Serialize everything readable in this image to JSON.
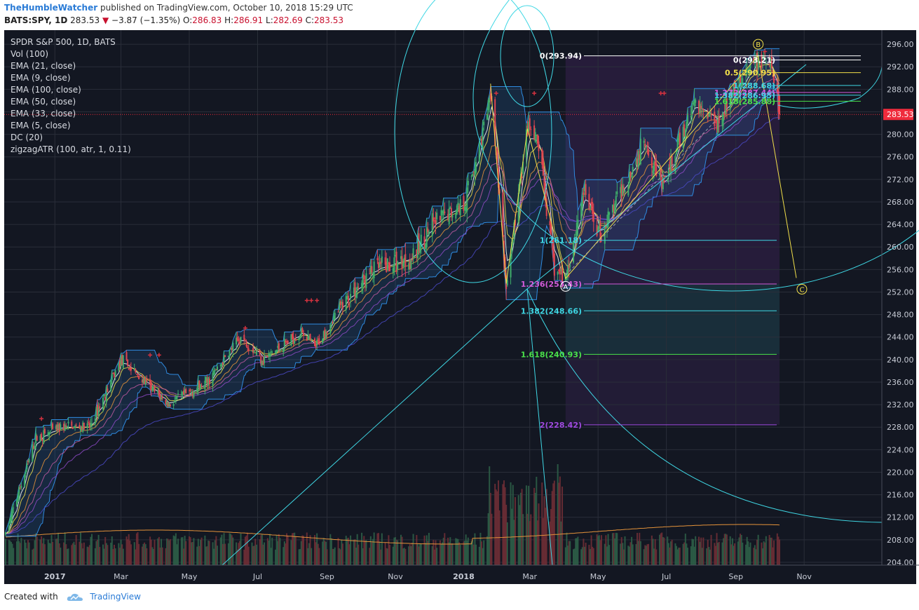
{
  "header": {
    "author": "TheHumbleWatcher",
    "published_text": "published on TradingView.com, October 10, 2018 15:29 UTC",
    "symbol": "BATS:SPY, 1D",
    "last": "283.53",
    "change_arrow": "▼",
    "change": "−3.87 (−1.35%)",
    "o_label": "O:",
    "o": "286.83",
    "h_label": "H:",
    "h": "286.91",
    "l_label": "L:",
    "l": "282.69",
    "c_label": "C:",
    "c": "283.53"
  },
  "legend": [
    "SPDR S&P 500, 1D, BATS",
    "Vol (100)",
    "EMA (21, close)",
    "EMA (9, close)",
    "EMA (100, close)",
    "EMA (50, close)",
    "EMA (33, close)",
    "EMA (5, close)",
    "DC (20)",
    "zigzagATR (100, atr, 1, 0.11)"
  ],
  "footer": {
    "created_with": "Created with",
    "brand": "TradingView"
  },
  "colors": {
    "background": "#131722",
    "grid": "#2a2e39",
    "up": "#3fae6a",
    "down": "#e0454f",
    "cyan": "#3fd7e4",
    "yellow": "#f2e04a",
    "donchian": "#2f8be0",
    "price_tag": "#ef2b3c"
  },
  "chart_data": {
    "type": "candlestick",
    "title": "SPDR S&P 500, 1D, BATS",
    "price_axis": {
      "ylim": [
        203.5,
        298.5
      ],
      "ticks": [
        "296.00",
        "292.00",
        "288.00",
        "284.00",
        "280.00",
        "276.00",
        "272.00",
        "268.00",
        "264.00",
        "260.00",
        "256.00",
        "252.00",
        "248.00",
        "244.00",
        "240.00",
        "236.00",
        "232.00",
        "228.00",
        "224.00",
        "220.00",
        "216.00",
        "212.00",
        "208.00",
        "204.00"
      ]
    },
    "time_axis": {
      "labels": [
        "2017",
        "Mar",
        "May",
        "Jul",
        "Sep",
        "Nov",
        "2018",
        "Mar",
        "May",
        "Jul",
        "Sep",
        "Nov"
      ]
    },
    "last_price_tag": "283.53",
    "price_path": [
      [
        "2016-11-18",
        209
      ],
      [
        "2016-12-15",
        226
      ],
      [
        "2017-01-06",
        228
      ],
      [
        "2017-02-01",
        228
      ],
      [
        "2017-03-01",
        240
      ],
      [
        "2017-04-12",
        232
      ],
      [
        "2017-05-17",
        236
      ],
      [
        "2017-06-16",
        244
      ],
      [
        "2017-07-06",
        240
      ],
      [
        "2017-08-10",
        245
      ],
      [
        "2017-08-21",
        242
      ],
      [
        "2017-09-15",
        250
      ],
      [
        "2017-10-13",
        256
      ],
      [
        "2017-11-15",
        258
      ],
      [
        "2017-12-04",
        264
      ],
      [
        "2018-01-02",
        268
      ],
      [
        "2018-01-26",
        286.6
      ],
      [
        "2018-02-08",
        253.0
      ],
      [
        "2018-02-27",
        281.0
      ],
      [
        "2018-03-09",
        278.0
      ],
      [
        "2018-03-23",
        256.0
      ],
      [
        "2018-04-02",
        254.4
      ],
      [
        "2018-04-18",
        270.0
      ],
      [
        "2018-05-03",
        262.0
      ],
      [
        "2018-06-12",
        279.0
      ],
      [
        "2018-06-28",
        270.5
      ],
      [
        "2018-07-25",
        285.5
      ],
      [
        "2018-08-15",
        282.5
      ],
      [
        "2018-09-20",
        293.2
      ],
      [
        "2018-10-03",
        292.0
      ],
      [
        "2018-10-10",
        283.53
      ]
    ],
    "fib_levels": [
      {
        "label": "0(293.94)",
        "value": 293.94
      },
      {
        "label": "0(293.21)",
        "value": 293.21
      },
      {
        "label": "0.5(290.95)",
        "value": 290.95
      },
      {
        "label": "1(288.68)",
        "value": 288.68
      },
      {
        "label": "1.272(287.44)",
        "value": 287.44
      },
      {
        "label": "1.382(286.95)",
        "value": 286.95
      },
      {
        "label": "1.618(285.88)",
        "value": 285.88
      },
      {
        "label": "1(261.18)",
        "value": 261.18
      },
      {
        "label": "1.236(253.43)",
        "value": 253.43
      },
      {
        "label": "1.382(248.66)",
        "value": 248.66
      },
      {
        "label": "1.618(240.93)",
        "value": 240.93
      },
      {
        "label": "2(228.42)",
        "value": 228.42
      }
    ],
    "wave_labels": [
      "A",
      "B",
      "C"
    ],
    "wave_points": [
      {
        "label": "A",
        "date": "2018-04-02",
        "price": 253.0
      },
      {
        "label": "B",
        "date": "2018-09-21",
        "price": 296.0
      },
      {
        "label": "C",
        "date": "2018-10-30",
        "price": 252.5
      }
    ],
    "volume_ma": "Vol (100)"
  }
}
